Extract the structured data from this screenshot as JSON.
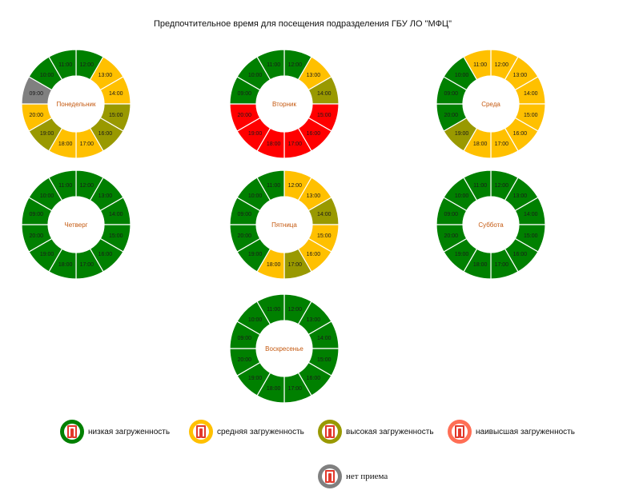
{
  "title": "Предпочтительное время для посещения подразделения ГБУ ЛО \"МФЦ\"",
  "colors": {
    "low": "#008000",
    "medium": "#FFC000",
    "high": "#999900",
    "highest": "#FF0000",
    "closed": "#808080",
    "highest_legend": "#FF6E55",
    "day_label": "#C55A11"
  },
  "legend": [
    {
      "key": "low",
      "label": "низкая загруженность",
      "icon": "mfc-logo-icon"
    },
    {
      "key": "medium",
      "label": "средняя загруженность",
      "icon": "mfc-logo-icon"
    },
    {
      "key": "high",
      "label": "высокая загруженность",
      "icon": "mfc-logo-icon"
    },
    {
      "key": "highest",
      "label": "наивысшая загруженность",
      "icon": "mfc-logo-icon"
    },
    {
      "key": "closed",
      "label": "нет приема",
      "icon": "mfc-logo-icon"
    }
  ],
  "chart_data": [
    {
      "type": "pie",
      "subtype": "donut",
      "center_label": "Понедельник",
      "hours": [
        "12:00",
        "13:00",
        "14:00",
        "15:00",
        "16:00",
        "17:00",
        "18:00",
        "19:00",
        "20:00",
        "09:00",
        "10:00",
        "11:00"
      ],
      "levels": [
        "low",
        "medium",
        "medium",
        "high",
        "high",
        "medium",
        "medium",
        "high",
        "medium",
        "closed",
        "low",
        "low"
      ]
    },
    {
      "type": "pie",
      "subtype": "donut",
      "center_label": "Вторник",
      "hours": [
        "12:00",
        "13:00",
        "14:00",
        "15:00",
        "16:00",
        "17:00",
        "18:00",
        "19:00",
        "20:00",
        "09:00",
        "10:00",
        "11:00"
      ],
      "levels": [
        "low",
        "medium",
        "high",
        "highest",
        "highest",
        "highest",
        "highest",
        "highest",
        "highest",
        "low",
        "low",
        "low"
      ]
    },
    {
      "type": "pie",
      "subtype": "donut",
      "center_label": "Среда",
      "hours": [
        "12:00",
        "13:00",
        "14:00",
        "15:00",
        "16:00",
        "17:00",
        "18:00",
        "19:00",
        "20:00",
        "09:00",
        "10:00",
        "11:00"
      ],
      "levels": [
        "medium",
        "medium",
        "medium",
        "medium",
        "medium",
        "medium",
        "medium",
        "high",
        "low",
        "low",
        "low",
        "medium"
      ]
    },
    {
      "type": "pie",
      "subtype": "donut",
      "center_label": "Четверг",
      "hours": [
        "12:00",
        "13:00",
        "14:00",
        "15:00",
        "16:00",
        "17:00",
        "18:00",
        "19:00",
        "20:00",
        "09:00",
        "10:00",
        "11:00"
      ],
      "levels": [
        "low",
        "low",
        "low",
        "low",
        "low",
        "low",
        "low",
        "low",
        "low",
        "low",
        "low",
        "low"
      ]
    },
    {
      "type": "pie",
      "subtype": "donut",
      "center_label": "Пятница",
      "hours": [
        "12:00",
        "13:00",
        "14:00",
        "15:00",
        "16:00",
        "17:00",
        "18:00",
        "19:00",
        "20:00",
        "09:00",
        "10:00",
        "11:00"
      ],
      "levels": [
        "medium",
        "medium",
        "high",
        "medium",
        "medium",
        "high",
        "medium",
        "low",
        "low",
        "low",
        "low",
        "low"
      ]
    },
    {
      "type": "pie",
      "subtype": "donut",
      "center_label": "Суббота",
      "hours": [
        "12:00",
        "13:00",
        "14:00",
        "15:00",
        "16:00",
        "17:00",
        "18:00",
        "19:00",
        "20:00",
        "09:00",
        "10:00",
        "11:00"
      ],
      "levels": [
        "low",
        "low",
        "low",
        "low",
        "low",
        "low",
        "low",
        "low",
        "low",
        "low",
        "low",
        "low"
      ]
    },
    {
      "type": "pie",
      "subtype": "donut",
      "center_label": "Воскресенье",
      "hours": [
        "12:00",
        "13:00",
        "14:00",
        "15:00",
        "16:00",
        "17:00",
        "18:00",
        "19:00",
        "20:00",
        "09:00",
        "10:00",
        "11:00"
      ],
      "levels": [
        "low",
        "low",
        "low",
        "low",
        "low",
        "low",
        "low",
        "low",
        "low",
        "low",
        "low",
        "low"
      ]
    }
  ]
}
